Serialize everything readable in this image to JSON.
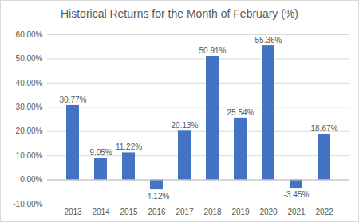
{
  "chart_data": {
    "type": "bar",
    "title": "Historical Returns for the Month of February (%)",
    "categories": [
      "2013",
      "2014",
      "2015",
      "2016",
      "2017",
      "2018",
      "2019",
      "2020",
      "2021",
      "2022"
    ],
    "values": [
      30.77,
      9.05,
      11.22,
      -4.12,
      20.13,
      50.91,
      25.54,
      55.36,
      -3.45,
      18.67
    ],
    "value_labels": [
      "30.77%",
      "9.05%",
      "11.22%",
      "-4.12%",
      "20.13%",
      "50.91%",
      "25.54%",
      "55.36%",
      "-3.45%",
      "18.67%"
    ],
    "color": "#4472c4",
    "ylim": [
      -10,
      60
    ],
    "yticks": [
      {
        "value": -10,
        "label": "-10.00%"
      },
      {
        "value": 0,
        "label": "0.00%"
      },
      {
        "value": 10,
        "label": "10.00%"
      },
      {
        "value": 20,
        "label": "20.00%"
      },
      {
        "value": 30,
        "label": "30.00%"
      },
      {
        "value": 40,
        "label": "40.00%"
      },
      {
        "value": 50,
        "label": "50.00%"
      },
      {
        "value": 60,
        "label": "60.00%"
      }
    ],
    "grid": true,
    "data_labels": true
  }
}
